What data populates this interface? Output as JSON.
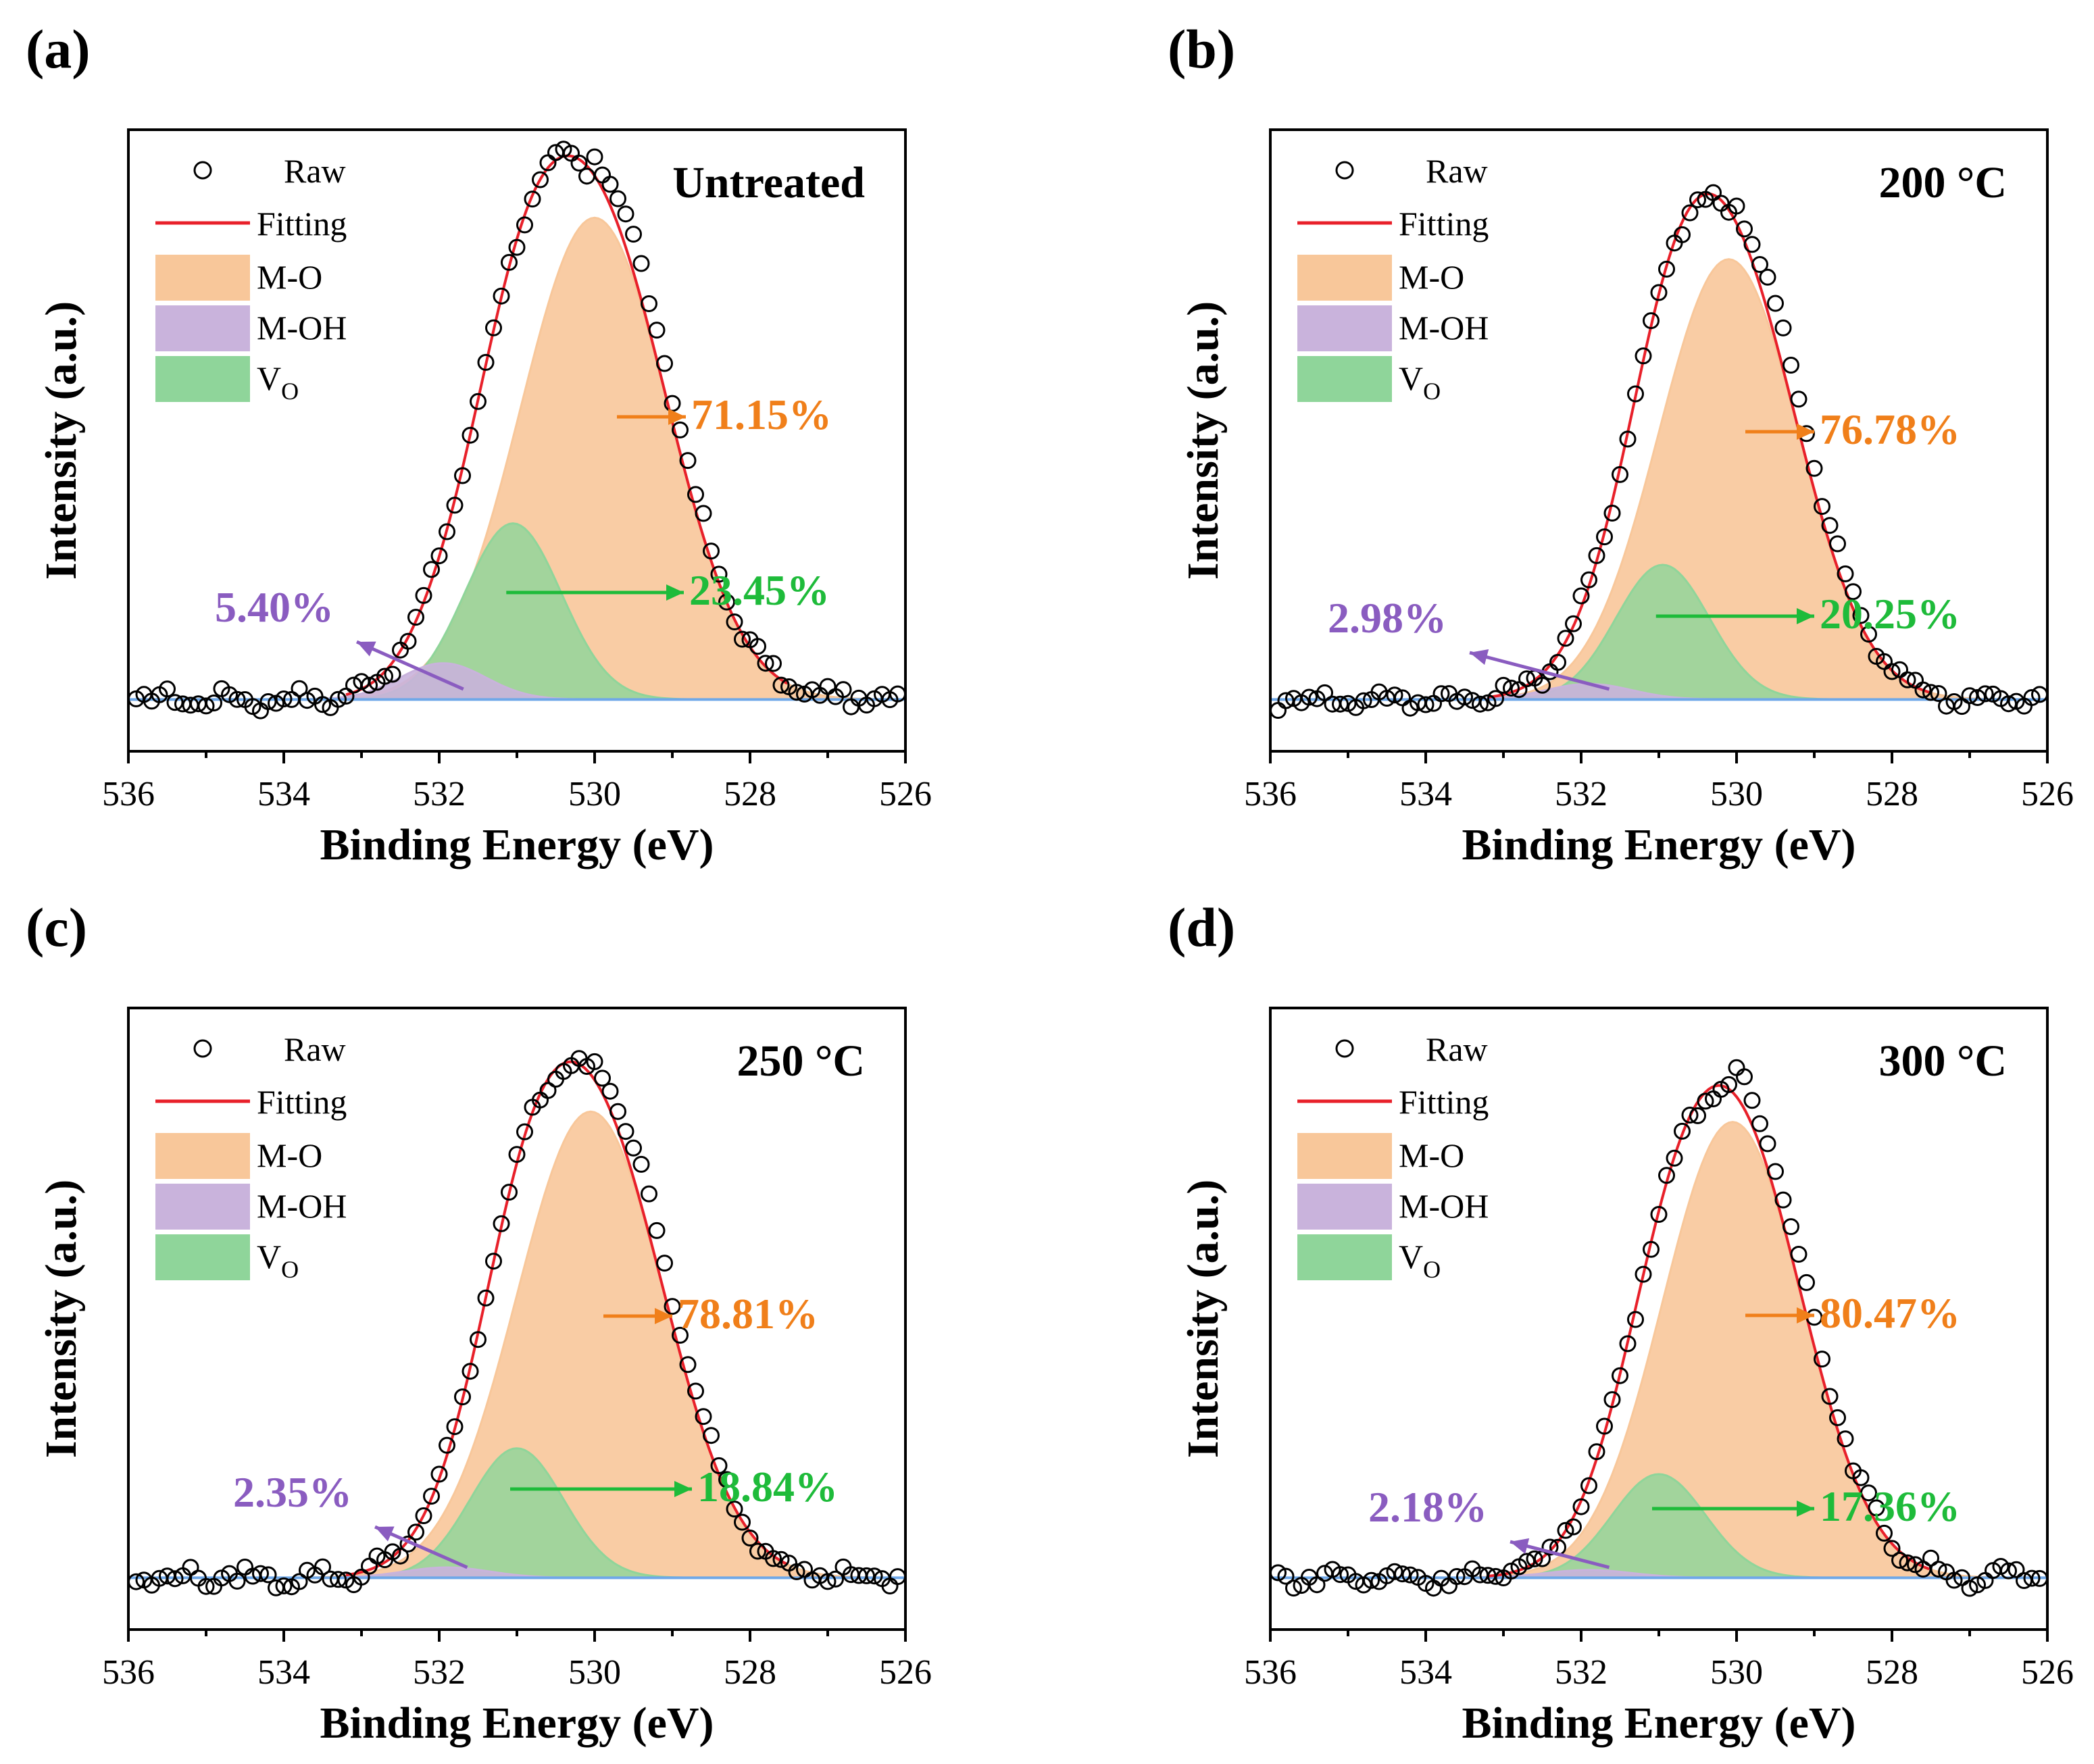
{
  "figure": {
    "legend": {
      "raw": "Raw",
      "fitting": "Fitting",
      "mo": "M-O",
      "moh": "M-OH",
      "vo_main": "V",
      "vo_sub": "O"
    },
    "colors": {
      "mo_fill": "#f8c79a",
      "moh_fill": "#c9b3dc",
      "vo_fill": "#8fd59a",
      "fitting_line": "#e8202a",
      "baseline": "#6fa8e8",
      "mo_text": "#f07f1a",
      "moh_text": "#8a5cc0",
      "vo_text": "#1ebb3a",
      "raw_marker": "#000000"
    }
  },
  "chart_data": [
    {
      "panel_label": "(a)",
      "condition": "Untreated",
      "type": "line",
      "xlabel": "Binding Energy (eV)",
      "ylabel": "Intensity (a.u.)",
      "xlim": [
        536,
        526
      ],
      "x_ticks": [
        "536",
        "534",
        "532",
        "530",
        "528",
        "526"
      ],
      "ylim": [
        -0.1,
        1.1
      ],
      "series": [
        {
          "name": "M-O",
          "center": 530.0,
          "height": 0.93,
          "width": 0.95
        },
        {
          "name": "V_O",
          "center": 531.05,
          "height": 0.34,
          "width": 0.62
        },
        {
          "name": "M-OH",
          "center": 531.95,
          "height": 0.07,
          "width": 0.55
        }
      ],
      "peak_max": 1.0,
      "percentages": {
        "mo": "71.15%",
        "vo": "23.45%",
        "moh": "5.40%"
      }
    },
    {
      "panel_label": "(b)",
      "condition": "200 °C",
      "type": "line",
      "xlabel": "Binding Energy (eV)",
      "ylabel": "Intensity (a.u.)",
      "xlim": [
        536,
        526
      ],
      "x_ticks": [
        "536",
        "534",
        "532",
        "530",
        "528",
        "526"
      ],
      "ylim": [
        -0.1,
        1.1
      ],
      "series": [
        {
          "name": "M-O",
          "center": 530.1,
          "height": 0.85,
          "width": 0.9
        },
        {
          "name": "V_O",
          "center": 530.95,
          "height": 0.26,
          "width": 0.6
        },
        {
          "name": "M-OH",
          "center": 531.9,
          "height": 0.03,
          "width": 0.55
        }
      ],
      "peak_max": 0.95,
      "percentages": {
        "mo": "76.78%",
        "vo": "20.25%",
        "moh": "2.98%"
      }
    },
    {
      "panel_label": "(c)",
      "condition": "250 °C",
      "type": "line",
      "xlabel": "Binding Energy (eV)",
      "ylabel": "Intensity (a.u.)",
      "xlim": [
        536,
        526
      ],
      "x_ticks": [
        "536",
        "534",
        "532",
        "530",
        "528",
        "526"
      ],
      "ylim": [
        -0.1,
        1.1
      ],
      "series": [
        {
          "name": "M-O",
          "center": 530.05,
          "height": 0.9,
          "width": 0.95
        },
        {
          "name": "V_O",
          "center": 531.0,
          "height": 0.25,
          "width": 0.6
        },
        {
          "name": "M-OH",
          "center": 531.9,
          "height": 0.02,
          "width": 0.55
        }
      ],
      "peak_max": 0.98,
      "percentages": {
        "mo": "78.81%",
        "vo": "18.84%",
        "moh": "2.35%"
      }
    },
    {
      "panel_label": "(d)",
      "condition": "300 °C",
      "type": "line",
      "xlabel": "Binding Energy (eV)",
      "ylabel": "Intensity (a.u.)",
      "xlim": [
        536,
        526
      ],
      "x_ticks": [
        "536",
        "534",
        "532",
        "530",
        "528",
        "526"
      ],
      "ylim": [
        -0.1,
        1.1
      ],
      "series": [
        {
          "name": "M-O",
          "center": 530.05,
          "height": 0.88,
          "width": 0.9
        },
        {
          "name": "V_O",
          "center": 531.0,
          "height": 0.2,
          "width": 0.6
        },
        {
          "name": "M-OH",
          "center": 531.9,
          "height": 0.015,
          "width": 0.55
        }
      ],
      "peak_max": 0.95,
      "percentages": {
        "mo": "80.47%",
        "vo": "17.36%",
        "moh": "2.18%"
      }
    }
  ]
}
